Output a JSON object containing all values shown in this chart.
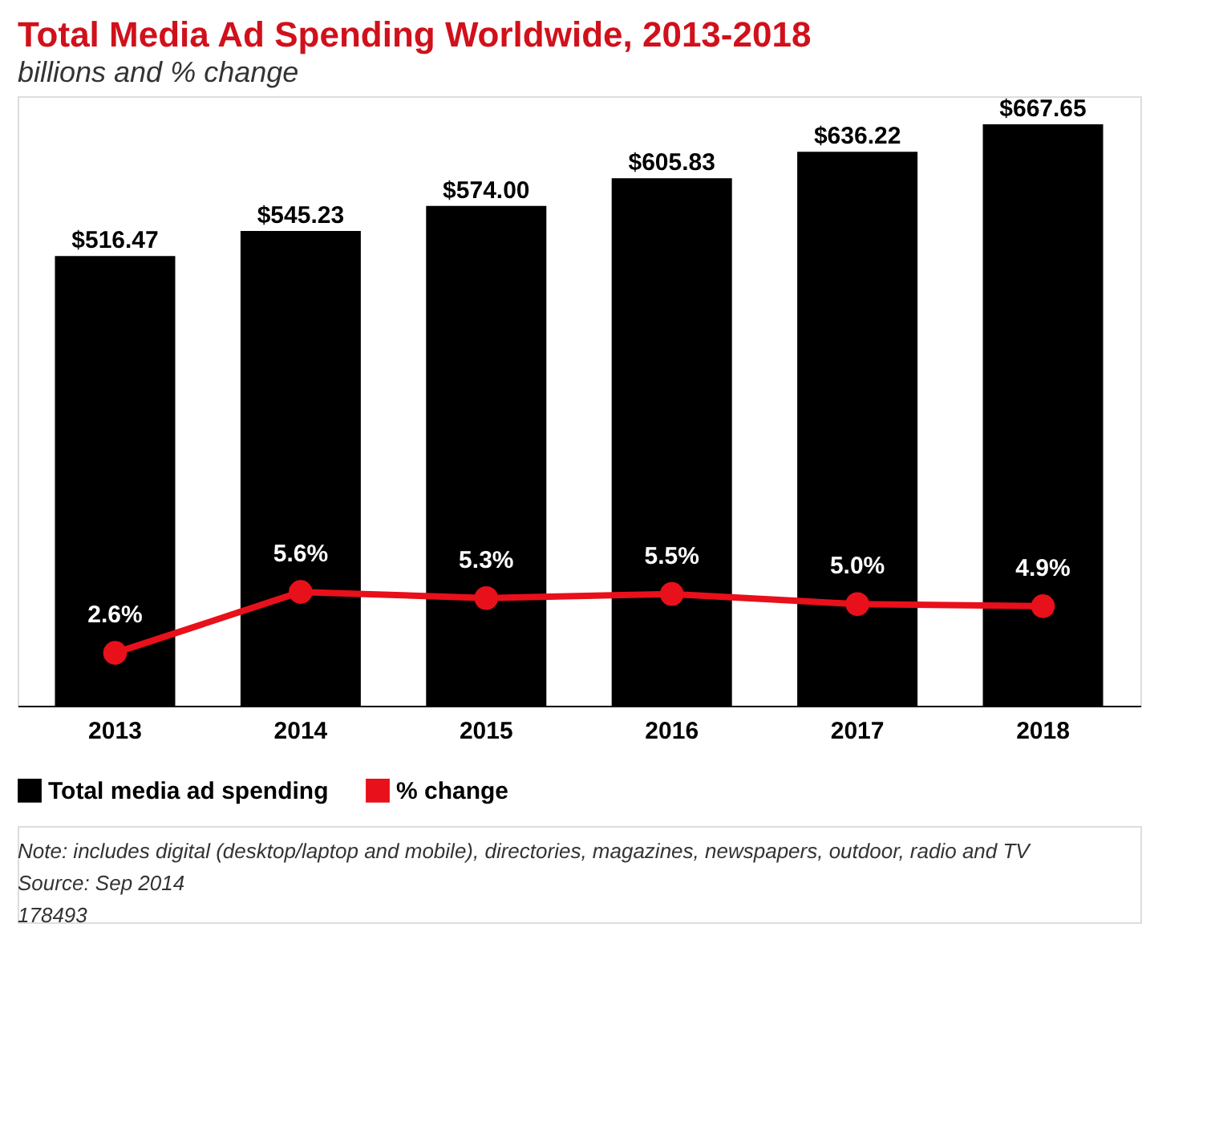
{
  "chart_data": {
    "type": "bar",
    "title": "Total Media Ad Spending Worldwide, 2013-2018",
    "subtitle": "billions and % change",
    "categories": [
      "2013",
      "2014",
      "2015",
      "2016",
      "2017",
      "2018"
    ],
    "series": [
      {
        "name": "Total media ad spending",
        "color": "#000000",
        "values": [
          516.47,
          545.23,
          574.0,
          605.83,
          636.22,
          667.65
        ],
        "value_labels": [
          "$516.47",
          "$545.23",
          "$574.00",
          "$605.83",
          "$636.22",
          "$667.65"
        ]
      },
      {
        "name": "% change",
        "type": "line",
        "axis": "y2",
        "color": "#e8101a",
        "marker": "circle",
        "values": [
          2.6,
          5.6,
          5.3,
          5.5,
          5.0,
          4.9
        ],
        "value_labels": [
          "2.6%",
          "5.6%",
          "5.3%",
          "5.5%",
          "5.0%",
          "4.9%"
        ]
      }
    ],
    "ylim": [
      0,
      700
    ],
    "tick_labels": "x",
    "grid": false,
    "legend": "bottom left",
    "annotations": [
      "Note: includes digital (desktop/laptop and mobile), directories, magazines, newspapers, outdoor, radio and TV",
      "Source: Sep 2014",
      "178493"
    ]
  }
}
